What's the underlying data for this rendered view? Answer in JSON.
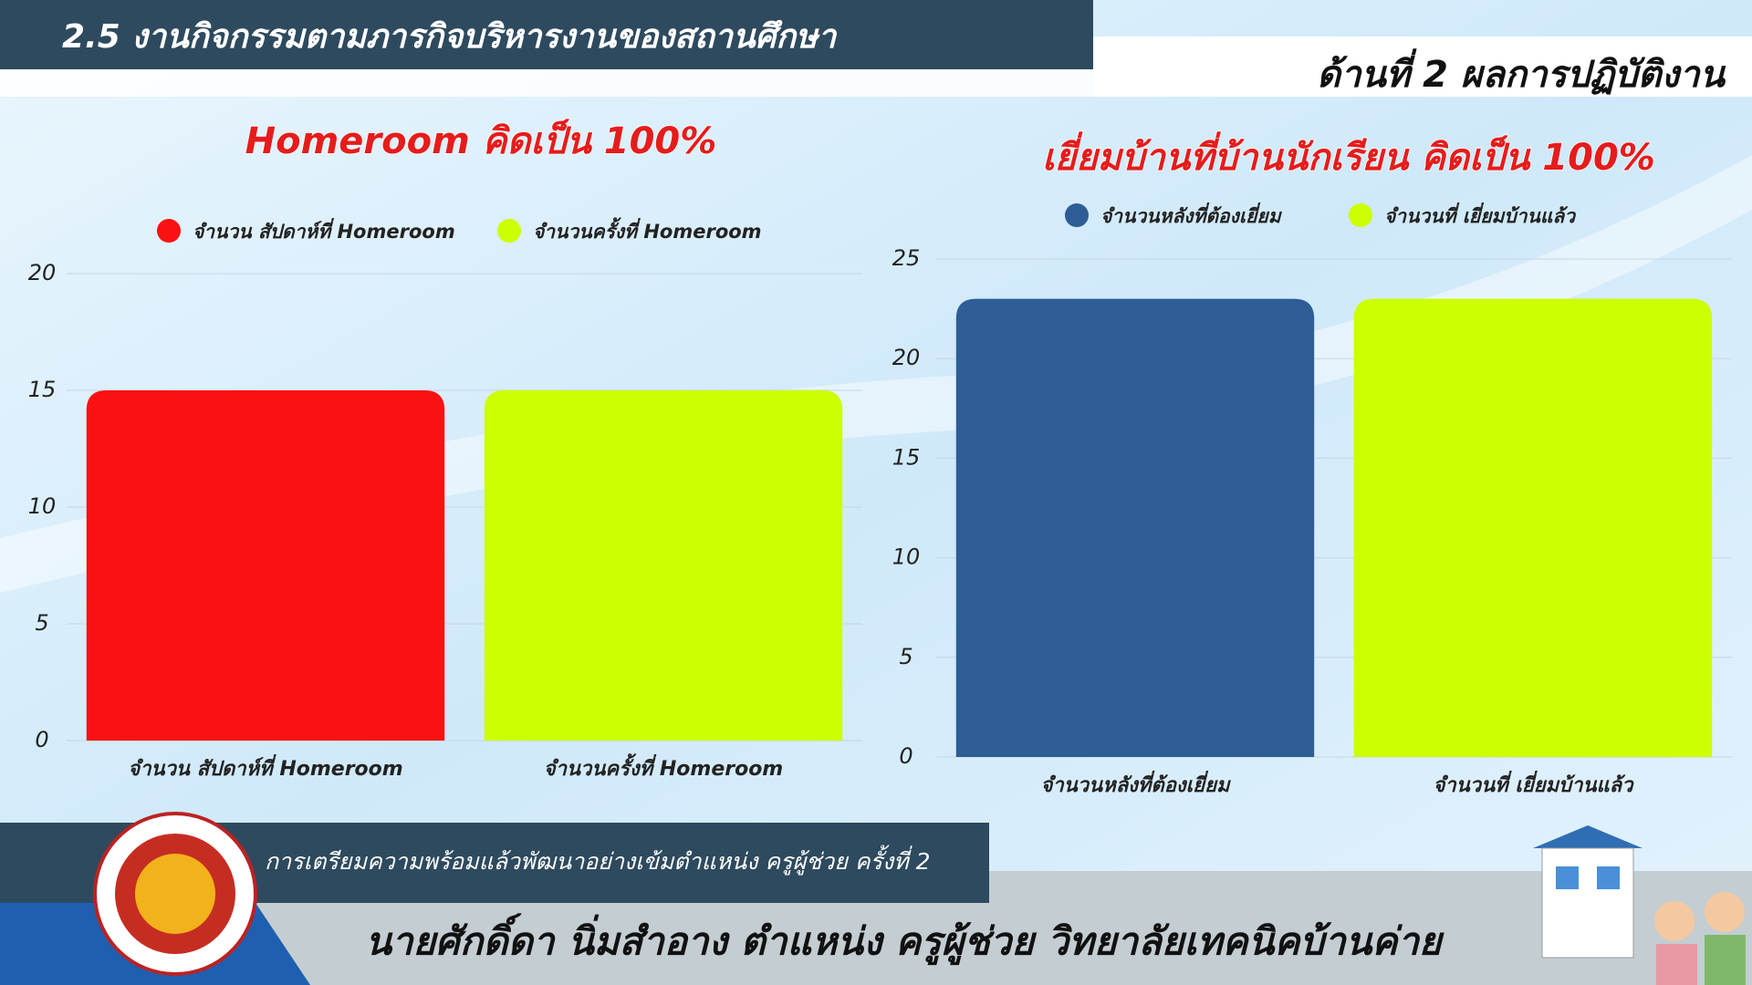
{
  "header": {
    "title": "2.5 งานกิจกรรมตามภารกิจบริหารงานของสถานศึกษา",
    "subtitle": "ด้านที่ 2 ผลการปฏิบัติงาน"
  },
  "chart_data": [
    {
      "type": "bar",
      "title": "Homeroom คิดเป็น 100%",
      "categories": [
        "จำนวน สัปดาห์ที่ Homeroom",
        "จำนวนครั้งที่ Homeroom"
      ],
      "values": [
        15,
        15
      ],
      "colors": [
        "#fa1111",
        "#ccff00"
      ],
      "ylim": [
        0,
        20
      ],
      "yticks": [
        0,
        5,
        10,
        15,
        20
      ],
      "grid": true,
      "legend": "top"
    },
    {
      "type": "bar",
      "title": "เยี่ยมบ้านที่บ้านนักเรียน คิดเป็น 100%",
      "categories": [
        "จำนวนหลังที่ต้องเยี่ยม",
        "จำนวนที่ เยี่ยมบ้านแล้ว"
      ],
      "values": [
        23,
        23
      ],
      "colors": [
        "#2e5d96",
        "#ccff00"
      ],
      "ylim": [
        0,
        25
      ],
      "yticks": [
        0,
        5,
        10,
        15,
        20,
        25
      ],
      "grid": true,
      "legend": "top"
    }
  ],
  "footer": {
    "program": "การเตรียมความพร้อมแล้วพัฒนาอย่างเข้มตำแหน่ง ครูผู้ช่วย ครั้งที่ 2",
    "name": "นายศักดิ์ดา นิ่มสำอาง   ตำแหน่ง ครูผู้ช่วย  วิทยาลัยเทคนิคบ้านค่าย"
  }
}
